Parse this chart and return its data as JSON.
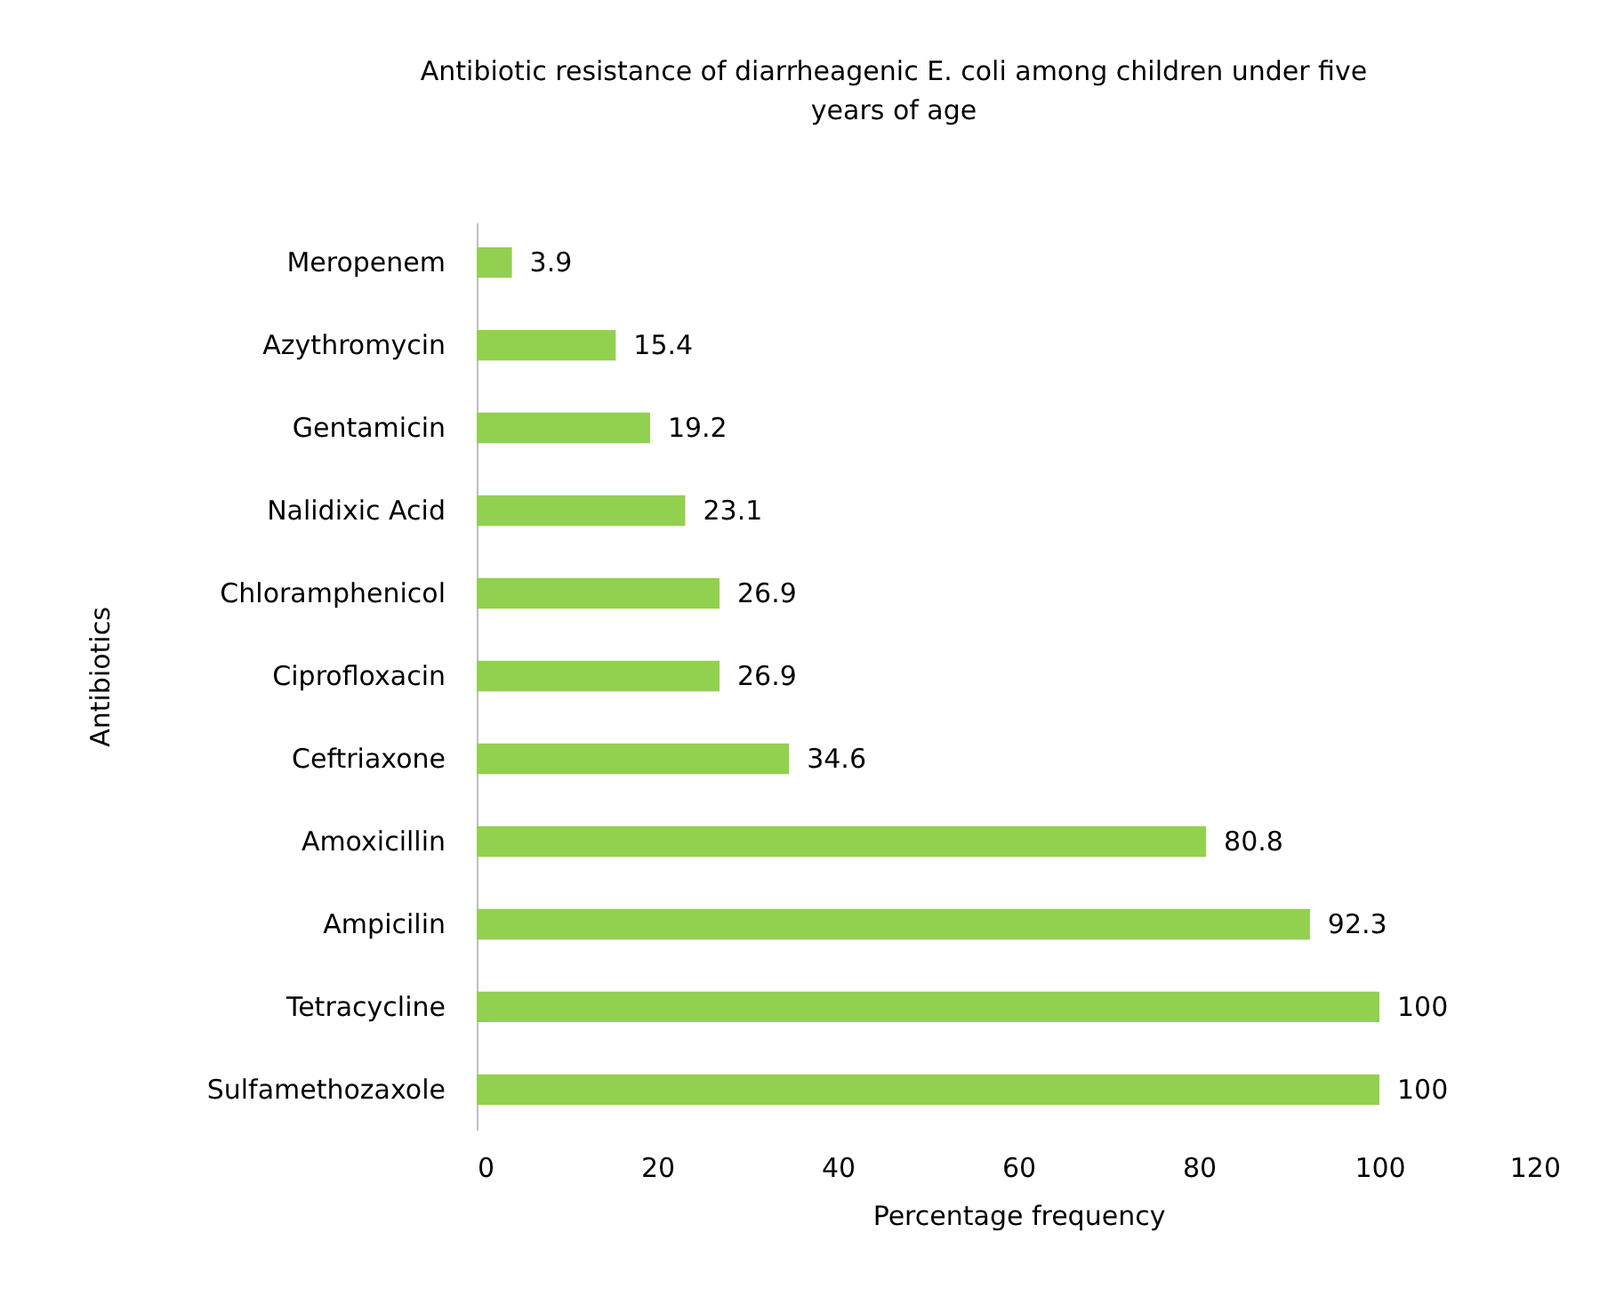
{
  "chart_data": {
    "type": "bar",
    "orientation": "horizontal",
    "title": "Antibiotic resistance of diarrheagenic E. coli among children under five years of age",
    "xlabel": "Percentage frequency",
    "ylabel": "Antibiotics",
    "categories": [
      "Meropenem",
      "Azythromycin",
      "Gentamicin",
      "Nalidixic Acid",
      "Chloramphenicol",
      "Ciprofloxacin",
      "Ceftriaxone",
      "Amoxicillin",
      "Ampicilin",
      "Tetracycline",
      "Sulfamethozaxole"
    ],
    "values": [
      3.9,
      15.4,
      19.2,
      23.1,
      26.9,
      26.9,
      34.6,
      80.8,
      92.3,
      100,
      100
    ],
    "color": "#92d050",
    "xlim": [
      0,
      120
    ],
    "xticks": [
      0,
      20,
      40,
      60,
      80,
      100,
      120
    ],
    "data_labels": true
  }
}
